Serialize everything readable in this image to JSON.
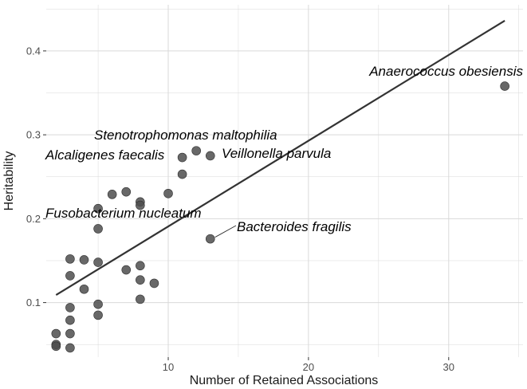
{
  "chart_data": {
    "type": "scatter",
    "title": "",
    "xlabel": "Number of Retained Associations",
    "ylabel": "Heritability",
    "xlim": [
      1.3,
      35.3
    ],
    "ylim": [
      0.035,
      0.455
    ],
    "x_ticks": [
      10,
      20,
      30
    ],
    "y_ticks": [
      0.1,
      0.2,
      0.3,
      0.4
    ],
    "x_tick_labels": [
      "10",
      "20",
      "30"
    ],
    "y_tick_labels": [
      "0.1",
      "0.2",
      "0.3",
      "0.4"
    ],
    "grid": true,
    "points": [
      {
        "x": 2,
        "y": 0.063
      },
      {
        "x": 2,
        "y": 0.05
      },
      {
        "x": 2,
        "y": 0.048
      },
      {
        "x": 3,
        "y": 0.152
      },
      {
        "x": 3,
        "y": 0.132
      },
      {
        "x": 3,
        "y": 0.094
      },
      {
        "x": 3,
        "y": 0.079
      },
      {
        "x": 3,
        "y": 0.063
      },
      {
        "x": 3,
        "y": 0.046
      },
      {
        "x": 4,
        "y": 0.151
      },
      {
        "x": 4,
        "y": 0.116
      },
      {
        "x": 5,
        "y": 0.212
      },
      {
        "x": 5,
        "y": 0.188
      },
      {
        "x": 5,
        "y": 0.148
      },
      {
        "x": 5,
        "y": 0.098
      },
      {
        "x": 5,
        "y": 0.085
      },
      {
        "x": 6,
        "y": 0.229
      },
      {
        "x": 7,
        "y": 0.232
      },
      {
        "x": 7,
        "y": 0.139
      },
      {
        "x": 8,
        "y": 0.22
      },
      {
        "x": 8,
        "y": 0.216
      },
      {
        "x": 8,
        "y": 0.144
      },
      {
        "x": 8,
        "y": 0.127
      },
      {
        "x": 8,
        "y": 0.104
      },
      {
        "x": 9,
        "y": 0.123
      },
      {
        "x": 10,
        "y": 0.23
      },
      {
        "x": 11,
        "y": 0.273
      },
      {
        "x": 11,
        "y": 0.253
      },
      {
        "x": 12,
        "y": 0.281
      },
      {
        "x": 13,
        "y": 0.275
      },
      {
        "x": 13,
        "y": 0.176
      },
      {
        "x": 34,
        "y": 0.358
      }
    ],
    "trend_line": {
      "x": [
        2,
        34
      ],
      "y": [
        0.109,
        0.436
      ]
    },
    "annotations": [
      {
        "text": "Anaerococcus obesiensis",
        "x": 34,
        "y": 0.358
      },
      {
        "text": "Stenotrophomonas maltophilia",
        "x": 12,
        "y": 0.281
      },
      {
        "text": "Veillonella parvula",
        "x": 13,
        "y": 0.275
      },
      {
        "text": "Alcaligenes faecalis",
        "x": 11,
        "y": 0.273
      },
      {
        "text": "Fusobacterium nucleatum",
        "x": 5,
        "y": 0.188
      },
      {
        "text": "Bacteroides fragilis",
        "x": 13,
        "y": 0.176
      }
    ]
  },
  "colors": {
    "point": "#4d4d4d",
    "trend_line": "#333333",
    "grid": "#d9d9d9",
    "axis_text": "#4d4d4d"
  }
}
